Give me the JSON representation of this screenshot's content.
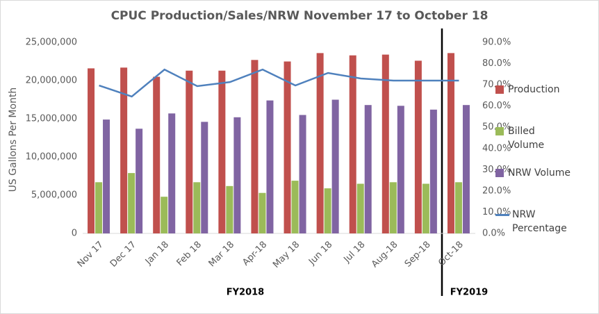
{
  "chart_data": {
    "type": "bar",
    "title": "CPUC Production/Sales/NRW November 17 to October 18",
    "y_label": "US Gallons Per Month",
    "categories": [
      "Nov 17",
      "Dec 17",
      "Jan 18",
      "Feb 18",
      "Mar 18",
      "Apr-18",
      "May 18",
      "Jun 18",
      "Jul 18",
      "Aug-18",
      "Sep-18",
      "Oct-18"
    ],
    "series": [
      {
        "name": "Production",
        "color": "#c0504d",
        "values": [
          21600000,
          21700000,
          20500000,
          21300000,
          21300000,
          22700000,
          22500000,
          23600000,
          23300000,
          23400000,
          22600000,
          23600000
        ]
      },
      {
        "name": "Billed Volume",
        "color": "#9bbb59",
        "values": [
          6700000,
          7900000,
          4800000,
          6700000,
          6200000,
          5300000,
          6900000,
          5900000,
          6500000,
          6700000,
          6500000,
          6700000
        ]
      },
      {
        "name": "NRW Volume",
        "color": "#8064a2",
        "values": [
          14900000,
          13700000,
          15700000,
          14600000,
          15200000,
          17400000,
          15500000,
          17500000,
          16800000,
          16700000,
          16200000,
          16800000
        ]
      },
      {
        "name": "NRW Percentage",
        "color": "#4f81bd",
        "type": "line",
        "axis": "y2",
        "values": [
          69.7,
          64.5,
          77.2,
          69.4,
          71.3,
          77.2,
          69.7,
          75.6,
          73.0,
          72.0,
          72.0,
          72.0
        ]
      }
    ],
    "ylim": [
      0,
      25000000
    ],
    "yticks": [
      {
        "value": 0,
        "label": "0"
      },
      {
        "value": 5000000,
        "label": "5,000,000"
      },
      {
        "value": 10000000,
        "label": "10,000,000"
      },
      {
        "value": 15000000,
        "label": "15,000,000"
      },
      {
        "value": 20000000,
        "label": "20,000,000"
      },
      {
        "value": 25000000,
        "label": "25,000,000"
      }
    ],
    "y2lim": [
      0,
      90
    ],
    "y2ticks": [
      {
        "value": 0,
        "label": "0.0%"
      },
      {
        "value": 10,
        "label": "10.0%"
      },
      {
        "value": 20,
        "label": "20.0%"
      },
      {
        "value": 30,
        "label": "30.0%"
      },
      {
        "value": 40,
        "label": "40.0%"
      },
      {
        "value": 50,
        "label": "50.0%"
      },
      {
        "value": 60,
        "label": "60.0%"
      },
      {
        "value": 70,
        "label": "70.0%"
      },
      {
        "value": 80,
        "label": "80.0%"
      },
      {
        "value": 90,
        "label": "90.0%"
      }
    ],
    "annotations": [
      "FY2018",
      "FY2019"
    ],
    "legend": "right"
  }
}
